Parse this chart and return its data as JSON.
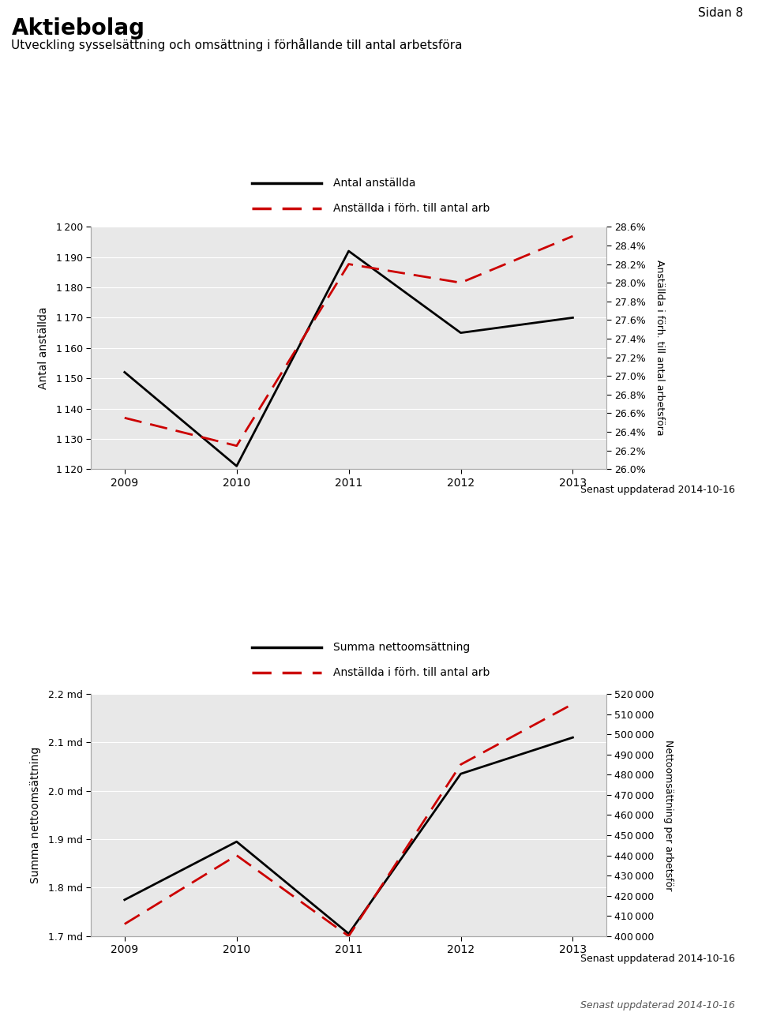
{
  "page_label": "Sidan 8",
  "main_title": "Aktiebolag",
  "subtitle": "Utveckling sysselsättning och omsättning i förhållande till antal arbetsföra",
  "update_date": "Senast uppdaterad 2014-10-16",
  "chart1": {
    "years": [
      2009,
      2010,
      2011,
      2012,
      2013
    ],
    "black_line": [
      1152,
      1121,
      1192,
      1165,
      1170
    ],
    "red_line_pct": [
      26.55,
      26.25,
      28.2,
      28.0,
      28.5
    ],
    "ylabel_left": "Antal anställda",
    "ylabel_right": "Anställda i förh. till antal arbetsföra",
    "legend1": "Antal anställda",
    "legend2": "Anställda i förh. till antal arb",
    "ylim_left": [
      1120,
      1200
    ],
    "ylim_right": [
      26.0,
      28.6
    ],
    "yticks_left": [
      1120,
      1130,
      1140,
      1150,
      1160,
      1170,
      1180,
      1190,
      1200
    ],
    "yticks_right": [
      26.0,
      26.2,
      26.4,
      26.6,
      26.8,
      27.0,
      27.2,
      27.4,
      27.6,
      27.8,
      28.0,
      28.2,
      28.4,
      28.6
    ]
  },
  "chart2": {
    "years": [
      2009,
      2010,
      2011,
      2012,
      2013
    ],
    "black_line_md": [
      1.775,
      1.895,
      1.705,
      2.035,
      2.11
    ],
    "red_line_k": [
      406000,
      440000,
      400000,
      485000,
      515000
    ],
    "ylabel_left": "Summa nettoomsättning",
    "ylabel_right": "Nettoomsättning per arbetsför",
    "legend1": "Summa nettoomsättning",
    "legend2": "Anställda i förh. till antal arb",
    "ylim_left": [
      1.7,
      2.2
    ],
    "ylim_right": [
      400000,
      520000
    ],
    "yticks_left_vals": [
      1.7,
      1.8,
      1.9,
      2.0,
      2.1,
      2.2
    ],
    "yticks_right": [
      400000,
      410000,
      420000,
      430000,
      440000,
      450000,
      460000,
      470000,
      480000,
      490000,
      500000,
      510000,
      520000
    ]
  },
  "plot_bg_color": "#e8e8e8",
  "line_black_color": "#000000",
  "line_red_color": "#cc0000"
}
